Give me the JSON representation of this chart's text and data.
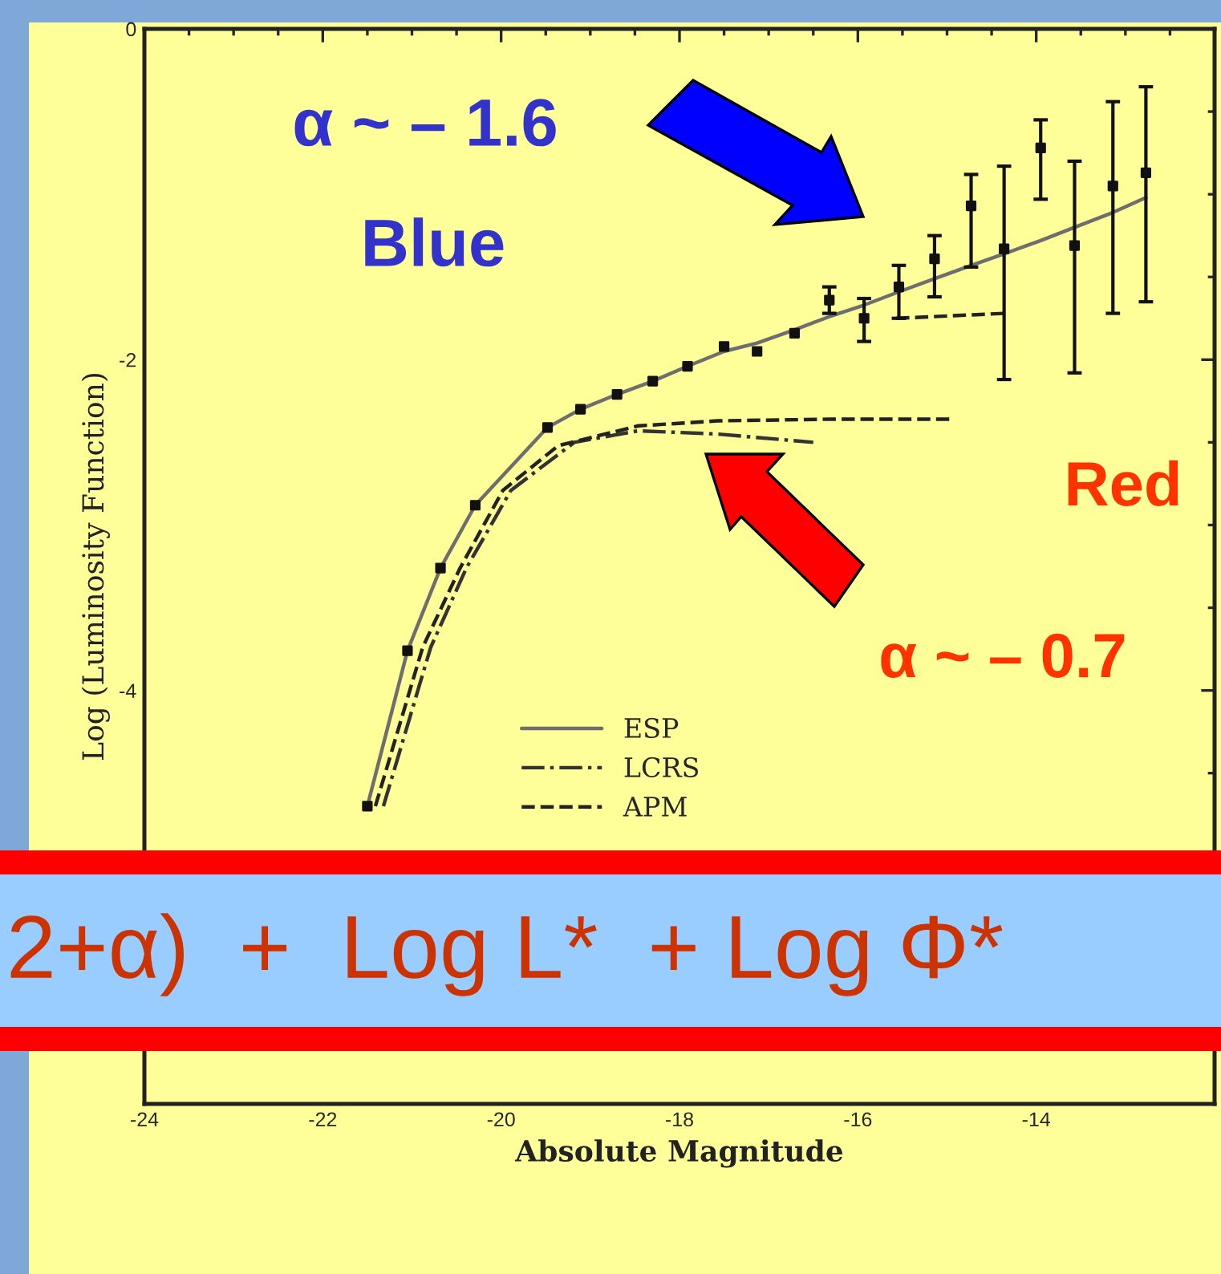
{
  "chart_data": {
    "type": "line",
    "xlabel": "Absolute Magnitude",
    "ylabel": "Log (Luminosity Function)",
    "xlim": [
      -24,
      -12
    ],
    "xticks": [
      -24,
      -22,
      -20,
      -18,
      -16,
      -14,
      {
        "value": -12,
        "label": null
      }
    ],
    "ylim": [
      -6.5,
      0
    ],
    "yticks": [
      0,
      -2,
      -4
    ],
    "grid": false,
    "legend": "bottom",
    "annotations": [
      "α ~ – 1.6",
      "Blue",
      "Red",
      "α ~ – 0.7",
      "2+α)  +  Log L*  + Log Φ*"
    ],
    "series": [
      {
        "name": "ESP",
        "color": "#6e6e6e",
        "line_style": "solid",
        "marker": "none",
        "x": [
          -21.5,
          -21.05,
          -20.68,
          -20.29,
          -19.48,
          -19.11,
          -18.7,
          -18.3,
          -17.91,
          -17.5,
          -17.13,
          -16.71,
          -16.32,
          -15.93,
          -15.54,
          -15.14,
          -14.73,
          -14.36,
          -13.95,
          -13.57,
          -13.14,
          -12.77
        ],
        "values": [
          -4.7,
          -3.76,
          -3.26,
          -2.88,
          -2.41,
          -2.3,
          -2.21,
          -2.13,
          -2.04,
          -1.95,
          -1.9,
          -1.82,
          -1.74,
          -1.67,
          -1.59,
          -1.51,
          -1.43,
          -1.36,
          -1.28,
          -1.2,
          -1.11,
          -1.02
        ]
      },
      {
        "type": "scatter",
        "color": "#111111",
        "marker": "square",
        "x": [
          -21.5,
          -21.05,
          -20.68,
          -20.29,
          -19.48,
          -19.11,
          -18.7,
          -18.3,
          -17.91,
          -17.5,
          -17.13,
          -16.71,
          -16.32,
          -15.93,
          -15.54,
          -15.14,
          -14.73,
          -14.36,
          -13.95,
          -13.57,
          -13.14,
          -12.77
        ],
        "values": [
          -4.7,
          -3.76,
          -3.26,
          -2.88,
          -2.41,
          -2.3,
          -2.21,
          -2.13,
          -2.04,
          -1.92,
          -1.95,
          -1.84,
          -1.64,
          -1.75,
          -1.56,
          -1.39,
          -1.07,
          -1.33,
          -0.72,
          -1.31,
          -0.95,
          -0.87
        ],
        "errors": [
          null,
          null,
          null,
          null,
          null,
          null,
          null,
          null,
          null,
          null,
          null,
          null,
          [
            -1.72,
            -1.56
          ],
          [
            -1.89,
            -1.63
          ],
          [
            -1.75,
            -1.43
          ],
          [
            -1.62,
            -1.25
          ],
          [
            -1.44,
            -0.88
          ],
          [
            -2.12,
            -0.83
          ],
          [
            -1.03,
            -0.55
          ],
          [
            -2.08,
            -0.8
          ],
          [
            -1.72,
            -0.44
          ],
          [
            -1.65,
            -0.35
          ]
        ]
      },
      {
        "name": "LCRS",
        "color": "#333333",
        "line_style": "dashdot",
        "marker": "none",
        "x": [
          -21.32,
          -20.79,
          -20.39,
          -19.89,
          -19.18,
          -18.46,
          -17.57,
          -16.5
        ],
        "values": [
          -4.7,
          -3.74,
          -3.26,
          -2.79,
          -2.5,
          -2.43,
          -2.45,
          -2.5
        ]
      },
      {
        "name": "APM",
        "color": "#222222",
        "line_style": "dashed",
        "marker": "none",
        "x": [
          -21.41,
          -20.88,
          -20.46,
          -19.98,
          -19.36,
          -18.46,
          -17.57,
          -16.32,
          -14.93
        ],
        "values": [
          -4.7,
          -3.74,
          -3.26,
          -2.79,
          -2.52,
          -2.4,
          -2.37,
          -2.36,
          -2.36
        ]
      },
      {
        "color": "#222222",
        "line_style": "dashed",
        "marker": "none",
        "x": [
          -15.57,
          -14.36
        ],
        "values": [
          -1.75,
          -1.72
        ]
      }
    ]
  }
}
